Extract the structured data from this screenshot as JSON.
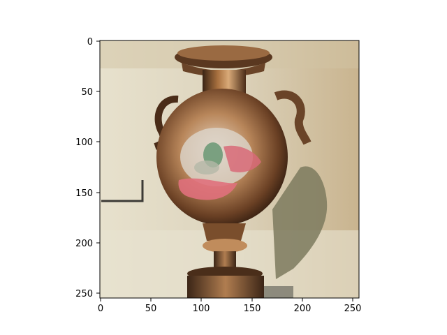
{
  "figure": {
    "x_ticks": [
      "0",
      "50",
      "100",
      "150",
      "200",
      "250"
    ],
    "y_ticks": [
      "0",
      "50",
      "100",
      "150",
      "200",
      "250"
    ]
  },
  "image": {
    "subject": "bronze amphora-style vase with two handles, reflective body showing pink and green tones, on a pedestal base, with a grey-green shape on the right against a beige blurred background"
  },
  "colors": {
    "background_light": "#e9e2cf",
    "background_mid": "#c8bda3",
    "bronze_dark": "#3a2414",
    "bronze_mid": "#8a5a33",
    "bronze_light": "#c89a6a",
    "pink_reflection": "#e0707c",
    "green_reflection": "#6f9a78",
    "right_shape": "#7d7a5e"
  }
}
